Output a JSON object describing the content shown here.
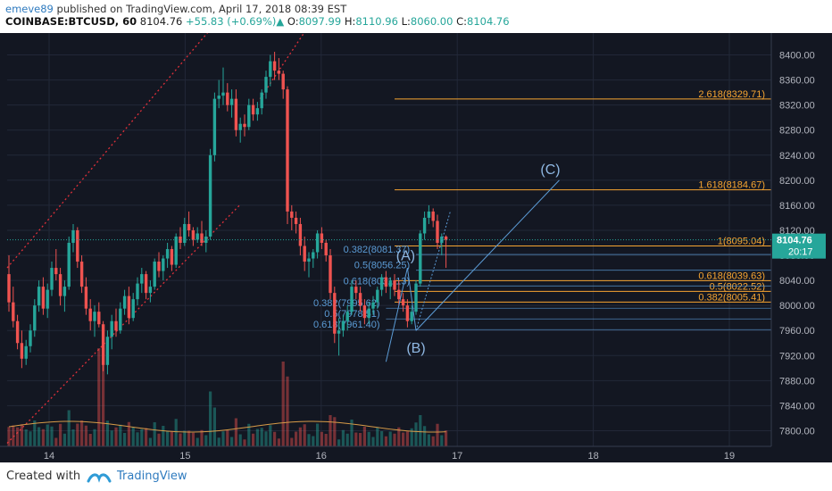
{
  "header": {
    "author": "emeve89",
    "published_text": "published on TradingView.com, April 17, 2018 08:39 EST",
    "symbol": "COINBASE:BTCUSD, 60",
    "last": "8104.76",
    "change_arrow": "▲",
    "change": "+55.83 (+0.69%)",
    "open_label": "O:",
    "open": "8097.99",
    "high_label": "H:",
    "high": "8110.96",
    "low_label": "L:",
    "low": "8060.00",
    "close_label": "C:",
    "close": "8104.76"
  },
  "footer": {
    "created_with": "Created with",
    "brand": "TradingView"
  },
  "colors": {
    "background": "#131722",
    "up": "#26a69a",
    "down": "#ef5350",
    "fib_orange": "#f7a531",
    "fib_blue": "#5b9bd5",
    "channel_red": "#e0303a",
    "price_tag": "#26a69a"
  },
  "chart_data": {
    "type": "candlestick",
    "interval": "60",
    "ylim": [
      7775,
      8435
    ],
    "y_ticks": [
      7800,
      7840,
      7880,
      7920,
      7960,
      8000,
      8040,
      8080,
      8120,
      8160,
      8200,
      8240,
      8280,
      8320,
      8360,
      8400
    ],
    "y_tick_labels": [
      "7800.00",
      "7840.00",
      "7880.00",
      "7920.00",
      "7960.00",
      "8000.00",
      "8040.00",
      "8080.00",
      "8120.00",
      "8160.00",
      "8200.00",
      "8240.00",
      "8280.00",
      "8320.00",
      "8360.00",
      "8400.00"
    ],
    "x_ticks": [
      14,
      15,
      16,
      17,
      18,
      19
    ],
    "x_tick_labels": [
      "14",
      "15",
      "16",
      "17",
      "18",
      "19"
    ],
    "last_price": "8104.76",
    "countdown": "20:17",
    "candles": [
      {
        "o": 8050,
        "h": 8080,
        "l": 7990,
        "c": 8005
      },
      {
        "o": 8005,
        "h": 8030,
        "l": 7965,
        "c": 7975
      },
      {
        "o": 7975,
        "h": 7985,
        "l": 7930,
        "c": 7940
      },
      {
        "o": 7940,
        "h": 7960,
        "l": 7900,
        "c": 7915
      },
      {
        "o": 7915,
        "h": 7945,
        "l": 7905,
        "c": 7935
      },
      {
        "o": 7935,
        "h": 7970,
        "l": 7925,
        "c": 7960
      },
      {
        "o": 7960,
        "h": 8010,
        "l": 7950,
        "c": 8000
      },
      {
        "o": 8000,
        "h": 8040,
        "l": 7990,
        "c": 8030
      },
      {
        "o": 8030,
        "h": 8045,
        "l": 7985,
        "c": 7995
      },
      {
        "o": 7995,
        "h": 8035,
        "l": 7980,
        "c": 8025
      },
      {
        "o": 8025,
        "h": 8070,
        "l": 8015,
        "c": 8060
      },
      {
        "o": 8060,
        "h": 8090,
        "l": 8040,
        "c": 8050
      },
      {
        "o": 8050,
        "h": 8060,
        "l": 8000,
        "c": 8015
      },
      {
        "o": 8015,
        "h": 8040,
        "l": 7990,
        "c": 8030
      },
      {
        "o": 8030,
        "h": 8110,
        "l": 8025,
        "c": 8100
      },
      {
        "o": 8100,
        "h": 8130,
        "l": 8085,
        "c": 8120
      },
      {
        "o": 8120,
        "h": 8125,
        "l": 8060,
        "c": 8070
      },
      {
        "o": 8070,
        "h": 8080,
        "l": 8020,
        "c": 8030
      },
      {
        "o": 8030,
        "h": 8045,
        "l": 7985,
        "c": 7995
      },
      {
        "o": 7995,
        "h": 8010,
        "l": 7960,
        "c": 7975
      },
      {
        "o": 7975,
        "h": 8000,
        "l": 7950,
        "c": 7990
      },
      {
        "o": 7990,
        "h": 8005,
        "l": 7965,
        "c": 7970
      },
      {
        "o": 7970,
        "h": 7975,
        "l": 7895,
        "c": 7905
      },
      {
        "o": 7905,
        "h": 7960,
        "l": 7890,
        "c": 7950
      },
      {
        "o": 7950,
        "h": 7985,
        "l": 7930,
        "c": 7975
      },
      {
        "o": 7975,
        "h": 7995,
        "l": 7950,
        "c": 7960
      },
      {
        "o": 7960,
        "h": 8005,
        "l": 7955,
        "c": 7995
      },
      {
        "o": 7995,
        "h": 8025,
        "l": 7985,
        "c": 8015
      },
      {
        "o": 8015,
        "h": 8030,
        "l": 7970,
        "c": 7980
      },
      {
        "o": 7980,
        "h": 8020,
        "l": 7975,
        "c": 8010
      },
      {
        "o": 8010,
        "h": 8045,
        "l": 8000,
        "c": 8035
      },
      {
        "o": 8035,
        "h": 8060,
        "l": 8020,
        "c": 8050
      },
      {
        "o": 8050,
        "h": 8055,
        "l": 8010,
        "c": 8020
      },
      {
        "o": 8020,
        "h": 8040,
        "l": 8005,
        "c": 8030
      },
      {
        "o": 8030,
        "h": 8075,
        "l": 8025,
        "c": 8070
      },
      {
        "o": 8070,
        "h": 8085,
        "l": 8045,
        "c": 8055
      },
      {
        "o": 8055,
        "h": 8080,
        "l": 8040,
        "c": 8075
      },
      {
        "o": 8075,
        "h": 8100,
        "l": 8060,
        "c": 8090
      },
      {
        "o": 8090,
        "h": 8095,
        "l": 8055,
        "c": 8065
      },
      {
        "o": 8065,
        "h": 8115,
        "l": 8060,
        "c": 8110
      },
      {
        "o": 8110,
        "h": 8125,
        "l": 8090,
        "c": 8100
      },
      {
        "o": 8100,
        "h": 8140,
        "l": 8095,
        "c": 8130
      },
      {
        "o": 8130,
        "h": 8150,
        "l": 8110,
        "c": 8120
      },
      {
        "o": 8120,
        "h": 8125,
        "l": 8095,
        "c": 8105
      },
      {
        "o": 8105,
        "h": 8125,
        "l": 8100,
        "c": 8115
      },
      {
        "o": 8115,
        "h": 8135,
        "l": 8095,
        "c": 8100
      },
      {
        "o": 8100,
        "h": 8120,
        "l": 8085,
        "c": 8110
      },
      {
        "o": 8110,
        "h": 8250,
        "l": 8105,
        "c": 8240
      },
      {
        "o": 8240,
        "h": 8340,
        "l": 8230,
        "c": 8330
      },
      {
        "o": 8330,
        "h": 8360,
        "l": 8315,
        "c": 8335
      },
      {
        "o": 8335,
        "h": 8380,
        "l": 8320,
        "c": 8340
      },
      {
        "o": 8340,
        "h": 8355,
        "l": 8310,
        "c": 8320
      },
      {
        "o": 8320,
        "h": 8345,
        "l": 8300,
        "c": 8330
      },
      {
        "o": 8330,
        "h": 8345,
        "l": 8270,
        "c": 8280
      },
      {
        "o": 8280,
        "h": 8300,
        "l": 8260,
        "c": 8290
      },
      {
        "o": 8290,
        "h": 8305,
        "l": 8270,
        "c": 8285
      },
      {
        "o": 8285,
        "h": 8330,
        "l": 8280,
        "c": 8320
      },
      {
        "o": 8320,
        "h": 8330,
        "l": 8295,
        "c": 8305
      },
      {
        "o": 8305,
        "h": 8325,
        "l": 8295,
        "c": 8315
      },
      {
        "o": 8315,
        "h": 8345,
        "l": 8305,
        "c": 8340
      },
      {
        "o": 8340,
        "h": 8375,
        "l": 8330,
        "c": 8365
      },
      {
        "o": 8365,
        "h": 8400,
        "l": 8350,
        "c": 8390
      },
      {
        "o": 8390,
        "h": 8405,
        "l": 8360,
        "c": 8375
      },
      {
        "o": 8375,
        "h": 8395,
        "l": 8360,
        "c": 8370
      },
      {
        "o": 8370,
        "h": 8375,
        "l": 8330,
        "c": 8345
      },
      {
        "o": 8345,
        "h": 8350,
        "l": 8130,
        "c": 8150
      },
      {
        "o": 8150,
        "h": 8160,
        "l": 8120,
        "c": 8140
      },
      {
        "o": 8140,
        "h": 8150,
        "l": 8115,
        "c": 8130
      },
      {
        "o": 8130,
        "h": 8140,
        "l": 8080,
        "c": 8095
      },
      {
        "o": 8095,
        "h": 8110,
        "l": 8055,
        "c": 8070
      },
      {
        "o": 8070,
        "h": 8085,
        "l": 8045,
        "c": 8075
      },
      {
        "o": 8075,
        "h": 8090,
        "l": 8060,
        "c": 8085
      },
      {
        "o": 8085,
        "h": 8120,
        "l": 8075,
        "c": 8115
      },
      {
        "o": 8115,
        "h": 8125,
        "l": 8090,
        "c": 8100
      },
      {
        "o": 8100,
        "h": 8105,
        "l": 8070,
        "c": 8080
      },
      {
        "o": 8080,
        "h": 8090,
        "l": 8010,
        "c": 8020
      },
      {
        "o": 8020,
        "h": 8030,
        "l": 7940,
        "c": 7955
      },
      {
        "o": 7955,
        "h": 7980,
        "l": 7920,
        "c": 7960
      },
      {
        "o": 7960,
        "h": 7985,
        "l": 7950,
        "c": 7975
      },
      {
        "o": 7975,
        "h": 8000,
        "l": 7960,
        "c": 7990
      },
      {
        "o": 7990,
        "h": 8040,
        "l": 7985,
        "c": 8030
      },
      {
        "o": 8030,
        "h": 8040,
        "l": 8010,
        "c": 8020
      },
      {
        "o": 8020,
        "h": 8030,
        "l": 7990,
        "c": 8000
      },
      {
        "o": 8000,
        "h": 8010,
        "l": 7970,
        "c": 7980
      },
      {
        "o": 7980,
        "h": 8005,
        "l": 7970,
        "c": 7995
      },
      {
        "o": 7995,
        "h": 8015,
        "l": 7985,
        "c": 8005
      },
      {
        "o": 8005,
        "h": 8030,
        "l": 7995,
        "c": 8025
      },
      {
        "o": 8025,
        "h": 8050,
        "l": 8015,
        "c": 8045
      },
      {
        "o": 8045,
        "h": 8055,
        "l": 8020,
        "c": 8030
      },
      {
        "o": 8030,
        "h": 8045,
        "l": 8010,
        "c": 8040
      },
      {
        "o": 8040,
        "h": 8050,
        "l": 8015,
        "c": 8025
      },
      {
        "o": 8025,
        "h": 8040,
        "l": 8000,
        "c": 8010
      },
      {
        "o": 8010,
        "h": 8020,
        "l": 7990,
        "c": 8000
      },
      {
        "o": 8000,
        "h": 8010,
        "l": 7965,
        "c": 7975
      },
      {
        "o": 7975,
        "h": 8000,
        "l": 7970,
        "c": 7990
      },
      {
        "o": 7990,
        "h": 8040,
        "l": 7985,
        "c": 8035
      },
      {
        "o": 8035,
        "h": 8120,
        "l": 8030,
        "c": 8115
      },
      {
        "o": 8115,
        "h": 8150,
        "l": 8105,
        "c": 8140
      },
      {
        "o": 8140,
        "h": 8160,
        "l": 8130,
        "c": 8150
      },
      {
        "o": 8150,
        "h": 8155,
        "l": 8125,
        "c": 8135
      },
      {
        "o": 8135,
        "h": 8145,
        "l": 8090,
        "c": 8100
      },
      {
        "o": 8100,
        "h": 8115,
        "l": 8080,
        "c": 8110
      },
      {
        "o": 8110,
        "h": 8112,
        "l": 8060,
        "c": 8105
      }
    ],
    "fib_levels": [
      {
        "label": "2.618(8329.71)",
        "value": 8329.71,
        "group": "upper"
      },
      {
        "label": "1.618(8184.67)",
        "value": 8184.67,
        "group": "upper"
      },
      {
        "label": "1(8095.04)",
        "value": 8095.04,
        "group": "upper"
      },
      {
        "label": "0.618(8039.63)",
        "value": 8039.63,
        "group": "upper"
      },
      {
        "label": "0.5(8022.52)",
        "value": 8022.52,
        "group": "upper"
      },
      {
        "label": "0.382(8005.41)",
        "value": 8005.41,
        "group": "upper"
      }
    ],
    "retracement_labels": [
      {
        "label": "0.382(8081.37)",
        "value": 8081.37
      },
      {
        "label": "0.5(8056.25)",
        "value": 8056.25
      },
      {
        "label": "0.618(8031.13)",
        "value": 8031.13
      },
      {
        "label": "0.382(7995.62)",
        "value": 7995.62
      },
      {
        "label": "0.5(7978.51)",
        "value": 7978.51
      },
      {
        "label": "0.618(7961.40)",
        "value": 7961.4
      }
    ],
    "wave_labels": [
      "(A)",
      "(B)",
      "(C)"
    ]
  }
}
